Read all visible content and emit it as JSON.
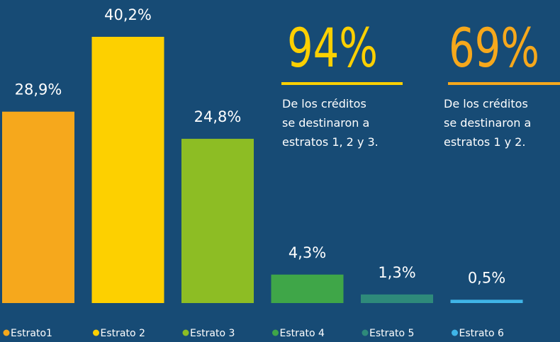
{
  "chart_data": {
    "type": "bar",
    "categories": [
      "Estrato1",
      "Estrato 2",
      "Estrato 3",
      "Estrato 4",
      "Estrato 5",
      "Estrato 6"
    ],
    "values": [
      28.9,
      40.2,
      24.8,
      4.3,
      1.3,
      0.5
    ],
    "value_labels": [
      "28,9%",
      "40,2%",
      "24,8%",
      "4,3%",
      "1,3%",
      "0,5%"
    ],
    "colors": [
      "#f6a81c",
      "#fdd000",
      "#8dbd24",
      "#3fa648",
      "#2e8a7a",
      "#3fb5e8"
    ]
  },
  "callouts": [
    {
      "figure": "94%",
      "color": "#fdd000",
      "lines": [
        "De los créditos",
        "se destinaron a",
        "estratos 1, 2 y 3."
      ]
    },
    {
      "figure": "69%",
      "color": "#f6a81c",
      "lines": [
        "De los créditos",
        "se destinaron a",
        "estratos 1 y 2."
      ]
    }
  ]
}
